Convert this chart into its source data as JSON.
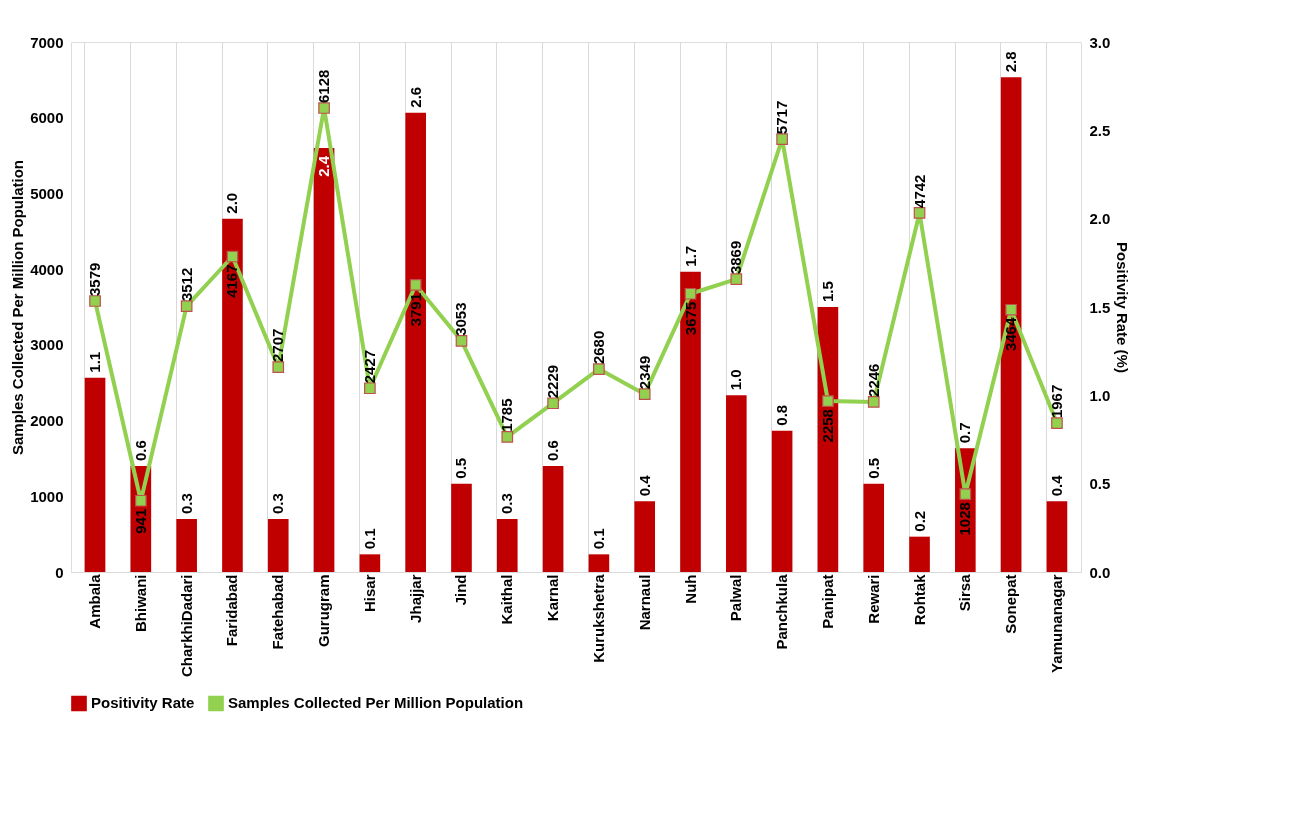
{
  "chart_data": {
    "type": "bar",
    "categories": [
      "Ambala",
      "Bhiwani",
      "CharkhiDadari",
      "Faridabad",
      "Fatehabad",
      "Gurugram",
      "Hisar",
      "Jhajjar",
      "Jind",
      "Kaithal",
      "Karnal",
      "Kurukshetra",
      "Narnaul",
      "Nuh",
      "Palwal",
      "Panchkula",
      "Panipat",
      "Rewari",
      "Rohtak",
      "Sirsa",
      "Sonepat",
      "Yamunanagar"
    ],
    "series": [
      {
        "name": "Positivity Rate",
        "axis": "y2",
        "color": "#c00000",
        "values": [
          1.1,
          0.6,
          0.3,
          2.0,
          0.3,
          2.4,
          0.1,
          2.6,
          0.5,
          0.3,
          0.6,
          0.1,
          0.4,
          1.7,
          1.0,
          0.8,
          1.5,
          0.5,
          0.2,
          0.7,
          2.8,
          0.4
        ],
        "value_labels": [
          "1.1",
          "0.6",
          "0.3",
          "2.0",
          "0.3",
          "2.4",
          "0.1",
          "2.6",
          "0.5",
          "0.3",
          "0.6",
          "0.1",
          "0.4",
          "1.7",
          "1.0",
          "0.8",
          "1.5",
          "0.5",
          "0.2",
          "0.7",
          "2.8",
          "0.4"
        ]
      },
      {
        "name": "Samples Collected Per Million Population",
        "type": "line",
        "axis": "y",
        "color": "#92d050",
        "values": [
          3579,
          941,
          3512,
          4167,
          2707,
          6128,
          2427,
          3791,
          3053,
          1785,
          2229,
          2680,
          2349,
          3675,
          3869,
          5717,
          2258,
          2246,
          4742,
          1028,
          3464,
          1967
        ]
      }
    ],
    "ylabel": "Samples Collected Per Million Population",
    "y2label": "Positivity Rate (%)",
    "ylim": [
      0,
      7000
    ],
    "yticks": [
      0,
      1000,
      2000,
      3000,
      4000,
      5000,
      6000,
      7000
    ],
    "y2lim": [
      0,
      3.0
    ],
    "y2ticks": [
      {
        "value": 0,
        "label": "0.0"
      },
      {
        "value": 0.5,
        "label": "0.5"
      },
      {
        "value": 1,
        "label": "1.0"
      },
      {
        "value": 1.5,
        "label": "1.5"
      },
      {
        "value": 2,
        "label": "2.0"
      },
      {
        "value": 2.5,
        "label": "2.5"
      },
      {
        "value": 3,
        "label": "3.0"
      }
    ],
    "marker": "square",
    "line_style": "solid",
    "data_labels": true,
    "grid": "x",
    "legend": "bottom"
  }
}
